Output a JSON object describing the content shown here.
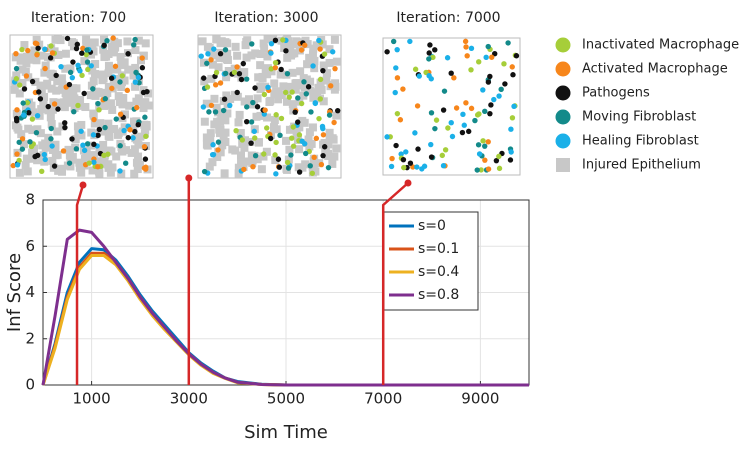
{
  "chart_data": {
    "type": "line",
    "x_label": "Sim Time",
    "y_label": "Inf Score",
    "xlim": [
      0,
      10000
    ],
    "ylim": [
      0,
      8
    ],
    "xticks": [
      1000,
      3000,
      5000,
      7000,
      9000
    ],
    "yticks": [
      0,
      2,
      4,
      6,
      8
    ],
    "grid": true,
    "legend_position": "upper right",
    "x": [
      0,
      250,
      500,
      750,
      1000,
      1250,
      1500,
      1750,
      2000,
      2250,
      2500,
      2750,
      3000,
      3250,
      3500,
      3750,
      4000,
      4500,
      5000,
      6000,
      7000,
      8000,
      9000,
      10000
    ],
    "series": [
      {
        "name": "s=0",
        "color": "#0072bd",
        "values": [
          0,
          1.8,
          4.0,
          5.3,
          5.9,
          5.85,
          5.4,
          4.7,
          3.9,
          3.2,
          2.6,
          2.0,
          1.4,
          0.95,
          0.6,
          0.3,
          0.15,
          0.03,
          0,
          0,
          0,
          0,
          0,
          0
        ]
      },
      {
        "name": "s=0.1",
        "color": "#d95319",
        "values": [
          0,
          1.7,
          3.8,
          5.1,
          5.7,
          5.7,
          5.3,
          4.6,
          3.8,
          3.1,
          2.5,
          1.9,
          1.35,
          0.9,
          0.55,
          0.3,
          0.12,
          0.02,
          0,
          0,
          0,
          0,
          0,
          0
        ]
      },
      {
        "name": "s=0.4",
        "color": "#edb120",
        "values": [
          0,
          1.6,
          3.7,
          5.0,
          5.6,
          5.6,
          5.2,
          4.5,
          3.7,
          3.0,
          2.4,
          1.85,
          1.3,
          0.85,
          0.5,
          0.28,
          0.1,
          0.02,
          0,
          0,
          0,
          0,
          0,
          0
        ]
      },
      {
        "name": "s=0.8",
        "color": "#7e2f8e",
        "values": [
          0,
          3.0,
          6.3,
          6.7,
          6.6,
          6.0,
          5.3,
          4.6,
          3.8,
          3.1,
          2.5,
          1.9,
          1.35,
          0.9,
          0.55,
          0.3,
          0.12,
          0.02,
          0,
          0,
          0,
          0,
          0,
          0
        ]
      }
    ],
    "marker_color": "#d62728",
    "markers": [
      {
        "x": 700,
        "label": "Iteration: 700"
      },
      {
        "x": 3000,
        "label": "Iteration: 3000"
      },
      {
        "x": 7000,
        "label": "Iteration: 7000"
      }
    ],
    "agent_legend": [
      {
        "name": "Inactivated Macrophage",
        "color": "#a6ce39"
      },
      {
        "name": "Activated Macrophage",
        "color": "#f7861b"
      },
      {
        "name": "Pathogens",
        "color": "#111111"
      },
      {
        "name": "Moving Fibroblast",
        "color": "#138a8a"
      },
      {
        "name": "Healing Fibroblast",
        "color": "#1ab0e8"
      },
      {
        "name": "Injured Epithelium",
        "color": "#c8c8c8"
      }
    ]
  }
}
